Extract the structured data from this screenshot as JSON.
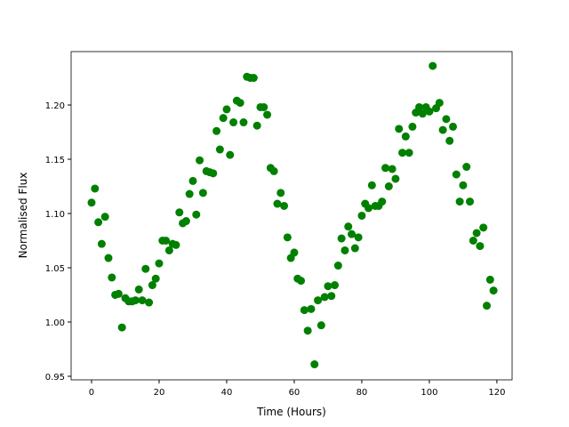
{
  "chart_data": {
    "type": "scatter",
    "xlabel": "Time (Hours)",
    "ylabel": "Normalised Flux",
    "color": "#008000",
    "x": [
      0,
      1,
      2,
      3,
      4,
      5,
      6,
      7,
      8,
      9,
      10,
      11,
      12,
      13,
      14,
      15,
      16,
      17,
      18,
      19,
      20,
      21,
      22,
      23,
      24,
      25,
      26,
      27,
      28,
      29,
      30,
      31,
      32,
      33,
      34,
      35,
      36,
      37,
      38,
      39,
      40,
      41,
      42,
      43,
      44,
      45,
      46,
      47,
      48,
      49,
      50,
      51,
      52,
      53,
      54,
      55,
      56,
      57,
      58,
      59,
      60,
      61,
      62,
      63,
      64,
      65,
      66,
      67,
      68,
      69,
      70,
      71,
      72,
      73,
      74,
      75,
      76,
      77,
      78,
      79,
      80,
      81,
      82,
      83,
      84,
      85,
      86,
      87,
      88,
      89,
      90,
      91,
      92,
      93,
      94,
      95,
      96,
      97,
      98,
      99,
      100,
      101,
      102,
      103,
      104,
      105,
      106,
      107,
      108,
      109,
      110,
      111,
      112,
      113,
      114,
      115,
      116,
      117,
      118,
      119
    ],
    "values": [
      1.11,
      1.123,
      1.092,
      1.072,
      1.097,
      1.059,
      1.041,
      1.025,
      1.026,
      0.995,
      1.022,
      1.019,
      1.019,
      1.02,
      1.03,
      1.02,
      1.049,
      1.018,
      1.034,
      1.04,
      1.054,
      1.075,
      1.075,
      1.066,
      1.072,
      1.071,
      1.101,
      1.091,
      1.093,
      1.118,
      1.13,
      1.099,
      1.149,
      1.119,
      1.139,
      1.138,
      1.137,
      1.176,
      1.159,
      1.188,
      1.196,
      1.154,
      1.184,
      1.204,
      1.202,
      1.184,
      1.226,
      1.225,
      1.225,
      1.181,
      1.198,
      1.198,
      1.191,
      1.142,
      1.139,
      1.109,
      1.119,
      1.107,
      1.078,
      1.059,
      1.064,
      1.04,
      1.038,
      1.011,
      0.992,
      1.012,
      0.961,
      1.02,
      0.997,
      1.023,
      1.033,
      1.024,
      1.034,
      1.052,
      1.077,
      1.066,
      1.088,
      1.081,
      1.068,
      1.078,
      1.098,
      1.109,
      1.105,
      1.126,
      1.107,
      1.107,
      1.111,
      1.142,
      1.125,
      1.141,
      1.132,
      1.178,
      1.156,
      1.171,
      1.156,
      1.18,
      1.193,
      1.198,
      1.192,
      1.198,
      1.194,
      1.236,
      1.197,
      1.202,
      1.177,
      1.187,
      1.167,
      1.18,
      1.136,
      1.111,
      1.126,
      1.143,
      1.111,
      1.075,
      1.082,
      1.07,
      1.087,
      1.015,
      1.039,
      1.029
    ],
    "xlim": [
      -6.05,
      124.5
    ],
    "ylim": [
      0.9467,
      1.2492
    ],
    "xticks": [
      0,
      20,
      40,
      60,
      80,
      100,
      120
    ],
    "yticks": [
      0.95,
      {
        "value": 1.0,
        "label": "1.00"
      },
      1.05,
      {
        "value": 1.1,
        "label": "1.10"
      },
      1.15,
      {
        "value": 1.2,
        "label": "1.20"
      }
    ]
  }
}
